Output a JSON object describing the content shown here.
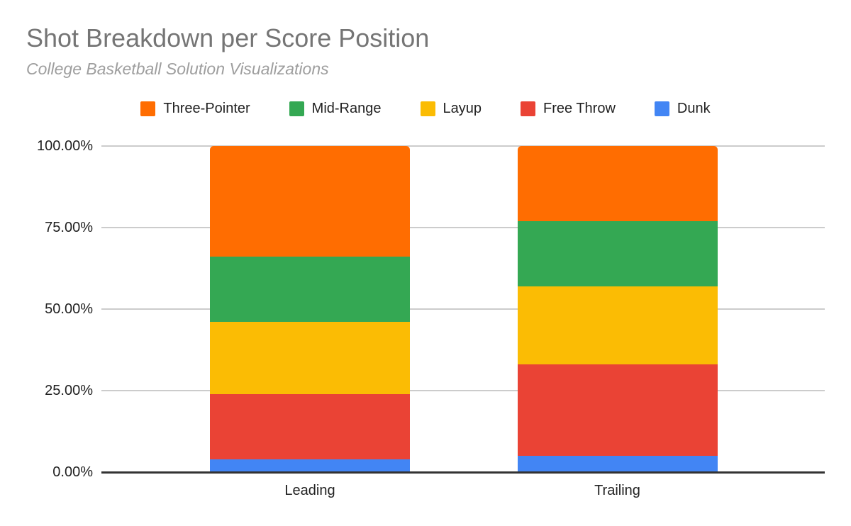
{
  "title": "Shot Breakdown per Score Position",
  "subtitle": "College Basketball Solution Visualizations",
  "chart_data": {
    "type": "bar",
    "variant": "stacked-100-percent-column",
    "title": "Shot Breakdown per Score Position",
    "subtitle": "College Basketball Solution Visualizations",
    "categories": [
      "Leading",
      "Trailing"
    ],
    "series": [
      {
        "name": "Three-Pointer",
        "color": "#FF6D01",
        "values": [
          34,
          23
        ]
      },
      {
        "name": "Mid-Range",
        "color": "#34A853",
        "values": [
          20,
          20
        ]
      },
      {
        "name": "Layup",
        "color": "#FBBC04",
        "values": [
          22,
          24
        ]
      },
      {
        "name": "Free Throw",
        "color": "#EA4335",
        "values": [
          20,
          28
        ]
      },
      {
        "name": "Dunk",
        "color": "#4285F4",
        "values": [
          4,
          5
        ]
      }
    ],
    "stack_order_note": "series listed top-of-stack first; Dunk is at the bottom of each column",
    "xlabel": "",
    "ylabel": "",
    "ylim": [
      0,
      100
    ],
    "y_axis": {
      "ticks": [
        {
          "value": 100,
          "label": "100.00%"
        },
        {
          "value": 75,
          "label": "75.00%"
        },
        {
          "value": 50,
          "label": "50.00%"
        },
        {
          "value": 25,
          "label": "25.00%"
        },
        {
          "value": 0,
          "label": "0.00%"
        }
      ]
    },
    "grid": true,
    "legend_position": "top"
  },
  "colors": {
    "title_text": "#757575",
    "subtitle_text": "#9E9E9E",
    "axis_text": "#222222",
    "legend_text": "#212121",
    "gridline": "#CCCCCC",
    "axis_line": "#333333",
    "background": "#FFFFFF"
  }
}
